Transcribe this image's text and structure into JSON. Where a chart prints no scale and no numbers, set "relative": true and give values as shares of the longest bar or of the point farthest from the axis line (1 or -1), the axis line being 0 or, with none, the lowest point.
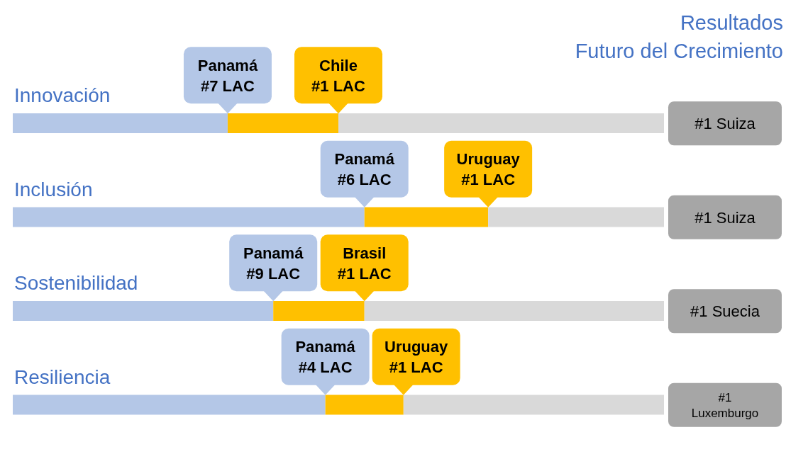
{
  "chart_data": {
    "type": "bar",
    "orientation": "horizontal",
    "stacked": true,
    "relative": true,
    "title": "Resultados",
    "subtitle": "Futuro del Crecimiento",
    "categories": [
      "Innovación",
      "Inclusión",
      "Sostenibilidad",
      "Resiliencia"
    ],
    "series": [
      {
        "color": "#b4c7e7",
        "values": [
          0.33,
          0.54,
          0.4,
          0.48
        ]
      },
      {
        "color": "#ffc000",
        "values": [
          0.17,
          0.19,
          0.14,
          0.12
        ]
      },
      {
        "color": "#d9d9d9",
        "values": [
          0.5,
          0.27,
          0.46,
          0.4
        ]
      }
    ],
    "annotations": [
      {
        "text": "Panamá\n#7 LAC",
        "x": 0.33,
        "y": "Innovación"
      },
      {
        "text": "Chile\n#1 LAC",
        "x": 0.5,
        "y": "Innovación"
      },
      {
        "text": "#1 Suiza",
        "x": 1,
        "y": "Innovación"
      },
      {
        "text": "Panamá\n#6 LAC",
        "x": 0.54,
        "y": "Inclusión"
      },
      {
        "text": "Uruguay\n#1 LAC",
        "x": 0.73,
        "y": "Inclusión"
      },
      {
        "text": "#1 Suiza",
        "x": 1,
        "y": "Inclusión"
      },
      {
        "text": "Panamá\n#9 LAC",
        "x": 0.4,
        "y": "Sostenibilidad"
      },
      {
        "text": "Brasil\n#1 LAC",
        "x": 0.54,
        "y": "Sostenibilidad"
      },
      {
        "text": "#1 Suecia",
        "x": 1,
        "y": "Sostenibilidad"
      },
      {
        "text": "Panamá\n#4 LAC",
        "x": 0.48,
        "y": "Resiliencia"
      },
      {
        "text": "Uruguay\n#1 LAC",
        "x": 0.6,
        "y": "Resiliencia"
      },
      {
        "text": "#1\nLuxemburgo",
        "x": 1,
        "y": "Resiliencia"
      }
    ],
    "legend": false
  }
}
